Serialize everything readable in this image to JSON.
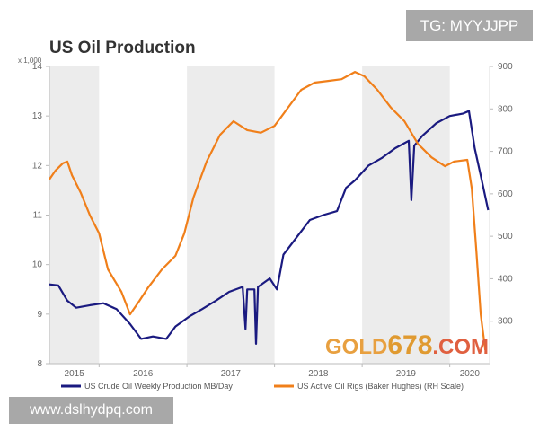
{
  "watermarks": {
    "tg": "TG: MYYJJPP",
    "site": "www.dslhydpq.com",
    "logo_part1": "GOLD",
    "logo_part2": "678",
    "logo_part3": ".COM"
  },
  "chart_data": {
    "type": "line",
    "title": "US Oil Production",
    "left_axis": {
      "unit_label": "x 1,000",
      "ylim": [
        8,
        14
      ],
      "ticks": [
        "8",
        "9",
        "10",
        "11",
        "12",
        "13",
        "14"
      ]
    },
    "right_axis": {
      "ylim": [
        200,
        900
      ],
      "ticks": [
        "300",
        "400",
        "500",
        "600",
        "700",
        "800",
        "900"
      ]
    },
    "x_axis": {
      "xlim": [
        "2015-06-08",
        "2020-06-15"
      ],
      "ticks": [
        "2015",
        "2016",
        "2017",
        "2018",
        "2019",
        "2020"
      ]
    },
    "shaded_years": [
      "2015",
      "2017",
      "2019"
    ],
    "grid": false,
    "legend_position": "bottom",
    "series": [
      {
        "name": "US Crude Oil Weekly Production MB/Day",
        "axis": "left",
        "color": "#1a1a80",
        "points": [
          [
            "2015-06-08",
            9.6
          ],
          [
            "2015-07-15",
            9.58
          ],
          [
            "2015-08-22",
            9.27
          ],
          [
            "2015-09-28",
            9.13
          ],
          [
            "2015-11-24",
            9.18
          ],
          [
            "2016-01-19",
            9.22
          ],
          [
            "2016-03-14",
            9.1
          ],
          [
            "2016-05-09",
            8.8
          ],
          [
            "2016-06-24",
            8.5
          ],
          [
            "2016-08-12",
            8.55
          ],
          [
            "2016-10-07",
            8.5
          ],
          [
            "2016-11-14",
            8.75
          ],
          [
            "2017-01-10",
            8.95
          ],
          [
            "2017-03-05",
            9.1
          ],
          [
            "2017-05-01",
            9.27
          ],
          [
            "2017-06-26",
            9.45
          ],
          [
            "2017-08-21",
            9.55
          ],
          [
            "2017-09-02",
            8.7
          ],
          [
            "2017-09-09",
            9.5
          ],
          [
            "2017-10-09",
            9.5
          ],
          [
            "2017-10-16",
            8.4
          ],
          [
            "2017-10-24",
            9.55
          ],
          [
            "2017-12-12",
            9.72
          ],
          [
            "2018-01-11",
            9.5
          ],
          [
            "2018-02-07",
            10.2
          ],
          [
            "2018-04-03",
            10.55
          ],
          [
            "2018-05-28",
            10.9
          ],
          [
            "2018-07-23",
            11.0
          ],
          [
            "2018-09-18",
            11.08
          ],
          [
            "2018-10-26",
            11.55
          ],
          [
            "2018-12-02",
            11.7
          ],
          [
            "2019-01-28",
            12.0
          ],
          [
            "2019-03-23",
            12.15
          ],
          [
            "2019-05-19",
            12.35
          ],
          [
            "2019-07-14",
            12.5
          ],
          [
            "2019-07-25",
            11.3
          ],
          [
            "2019-08-06",
            12.4
          ],
          [
            "2019-09-09",
            12.6
          ],
          [
            "2019-11-05",
            12.85
          ],
          [
            "2020-01-01",
            13.0
          ],
          [
            "2020-02-26",
            13.05
          ],
          [
            "2020-03-21",
            13.1
          ],
          [
            "2020-04-14",
            12.35
          ],
          [
            "2020-05-09",
            11.8
          ],
          [
            "2020-06-09",
            11.1
          ]
        ]
      },
      {
        "name": "US Active Oil Rigs (Baker Hughes) (RH Scale)",
        "axis": "right",
        "color": "#f07f1a",
        "points": [
          [
            "2015-06-08",
            634
          ],
          [
            "2015-07-04",
            655
          ],
          [
            "2015-08-03",
            672
          ],
          [
            "2015-08-22",
            676
          ],
          [
            "2015-09-10",
            644
          ],
          [
            "2015-10-17",
            602
          ],
          [
            "2015-11-24",
            549
          ],
          [
            "2016-01-01",
            507
          ],
          [
            "2016-02-07",
            422
          ],
          [
            "2016-04-03",
            369
          ],
          [
            "2016-05-09",
            316
          ],
          [
            "2016-06-17",
            348
          ],
          [
            "2016-07-24",
            380
          ],
          [
            "2016-09-19",
            422
          ],
          [
            "2016-11-14",
            454
          ],
          [
            "2016-12-21",
            507
          ],
          [
            "2017-01-28",
            591
          ],
          [
            "2017-03-24",
            676
          ],
          [
            "2017-05-19",
            739
          ],
          [
            "2017-07-14",
            771
          ],
          [
            "2017-09-09",
            750
          ],
          [
            "2017-11-05",
            744
          ],
          [
            "2018-01-01",
            760
          ],
          [
            "2018-02-26",
            803
          ],
          [
            "2018-04-22",
            845
          ],
          [
            "2018-06-17",
            862
          ],
          [
            "2018-08-12",
            866
          ],
          [
            "2018-10-07",
            870
          ],
          [
            "2018-12-02",
            887
          ],
          [
            "2019-01-10",
            877
          ],
          [
            "2019-03-05",
            845
          ],
          [
            "2019-05-01",
            803
          ],
          [
            "2019-06-26",
            771
          ],
          [
            "2019-08-21",
            718
          ],
          [
            "2019-10-17",
            686
          ],
          [
            "2019-12-12",
            665
          ],
          [
            "2020-01-19",
            676
          ],
          [
            "2020-03-14",
            680
          ],
          [
            "2020-04-02",
            612
          ],
          [
            "2020-04-21",
            464
          ],
          [
            "2020-05-09",
            316
          ],
          [
            "2020-05-28",
            232
          ]
        ]
      }
    ]
  }
}
